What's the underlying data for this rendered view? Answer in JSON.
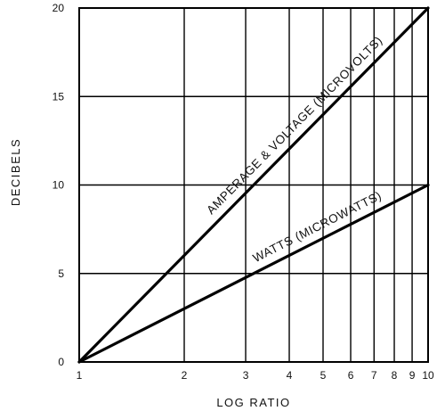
{
  "chart_data": {
    "type": "line",
    "xlabel": "LOG RATIO",
    "ylabel": "DECIBELS",
    "x_scale": "log",
    "xlim": [
      1,
      10
    ],
    "ylim": [
      0,
      20
    ],
    "x_ticks": [
      1,
      2,
      3,
      4,
      5,
      6,
      7,
      8,
      9,
      10
    ],
    "y_ticks": [
      0,
      5,
      10,
      15,
      20
    ],
    "grid": true,
    "series": [
      {
        "name": "AMPERAGE & VOLTAGE (MICROVOLTS)",
        "x": [
          1,
          10
        ],
        "y": [
          0,
          20
        ]
      },
      {
        "name": "WATTS (MICROWATTS)",
        "x": [
          1,
          10
        ],
        "y": [
          0,
          10
        ]
      }
    ]
  }
}
